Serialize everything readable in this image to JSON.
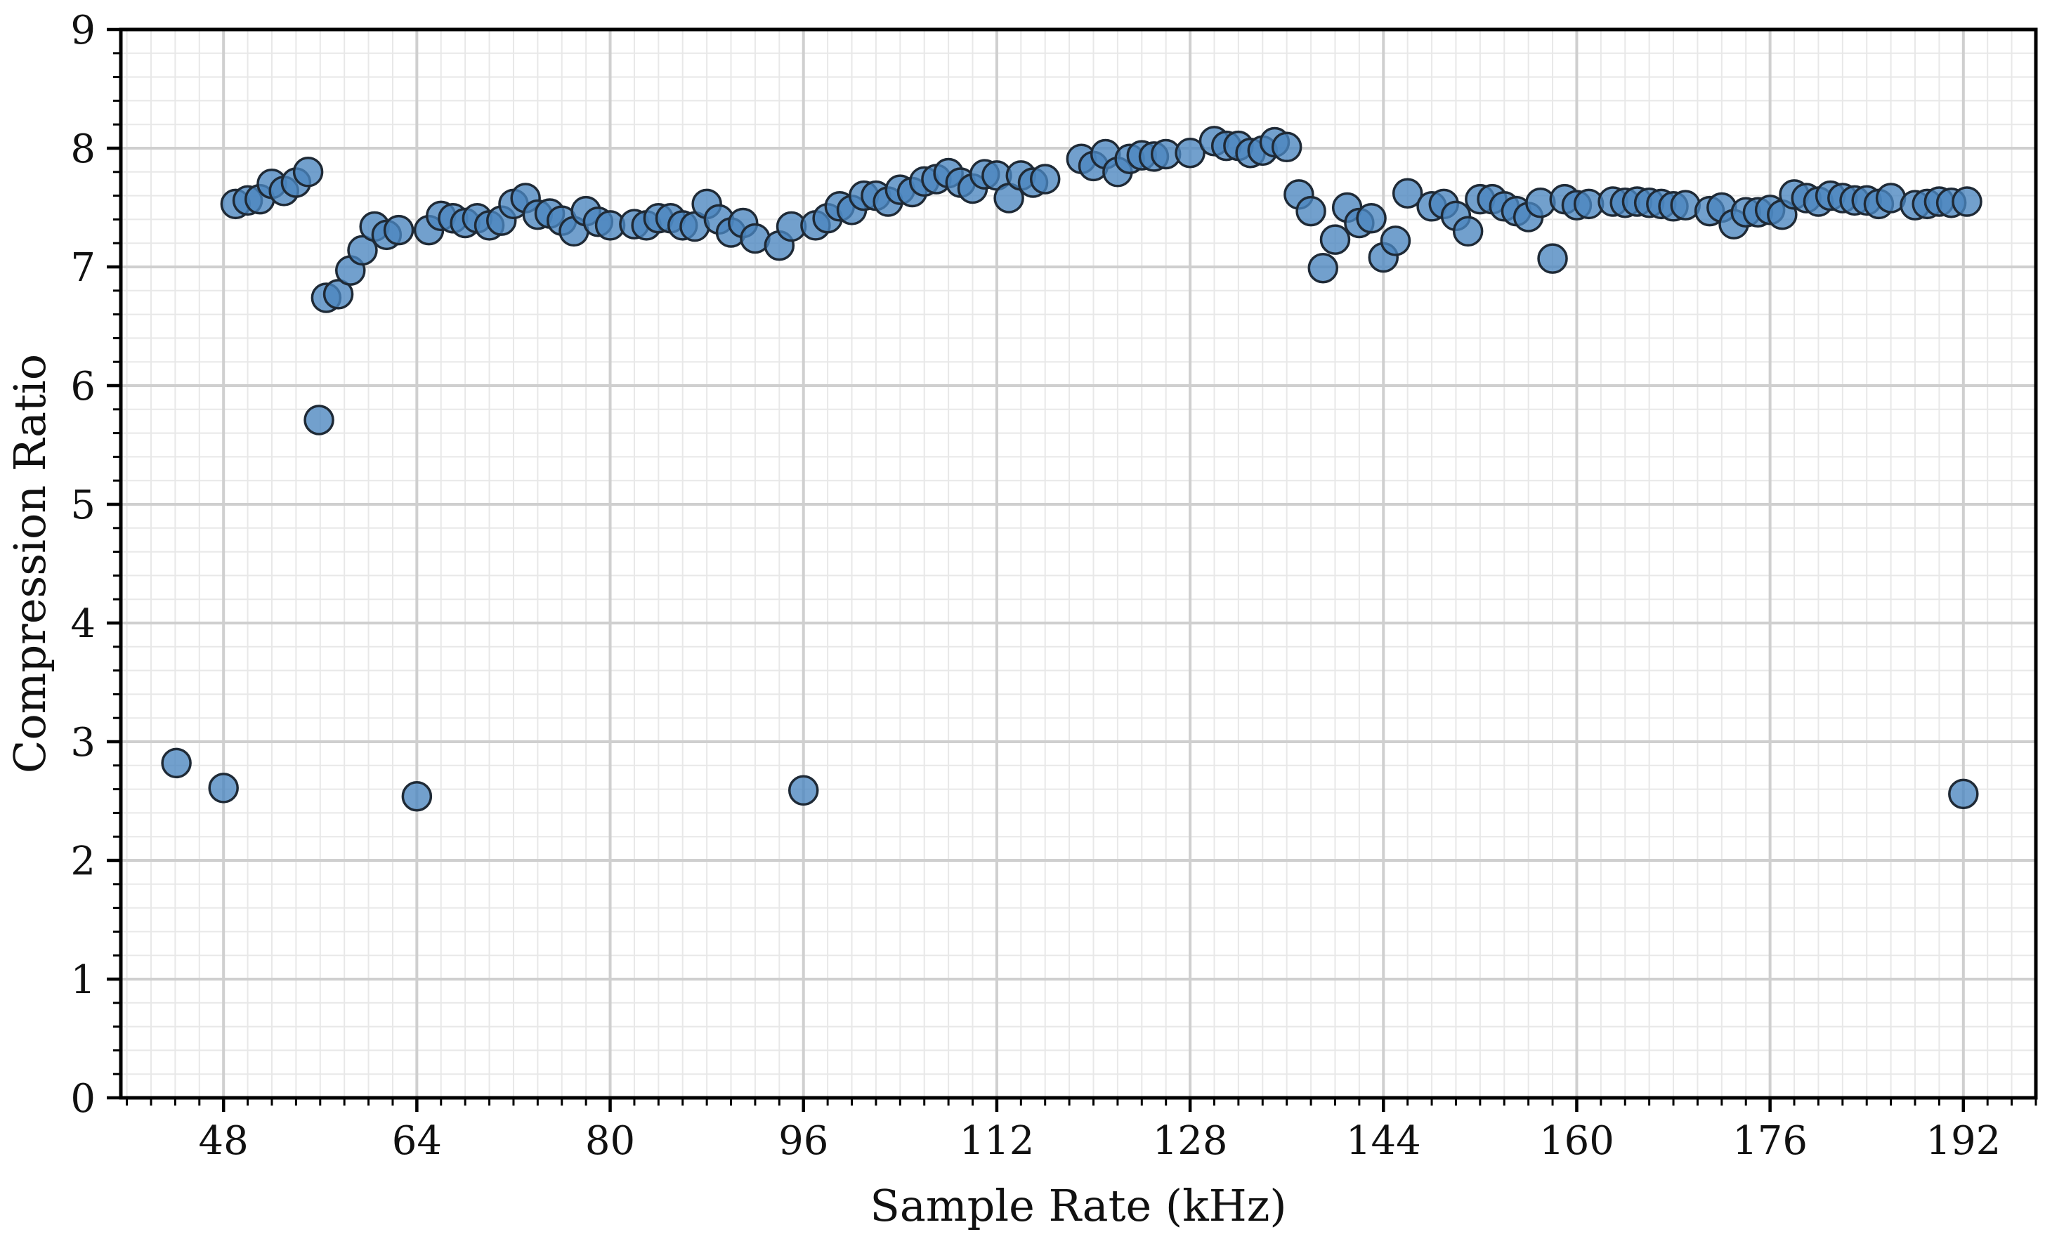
{
  "chart_data": {
    "type": "scatter",
    "title": "",
    "xlabel": "Sample Rate (kHz)",
    "ylabel": "Compression Ratio",
    "xlim": [
      39.5,
      198
    ],
    "ylim": [
      0,
      9
    ],
    "xticks": [
      48,
      64,
      80,
      96,
      112,
      128,
      144,
      160,
      176,
      192
    ],
    "yticks": [
      0,
      1,
      2,
      3,
      4,
      5,
      6,
      7,
      8,
      9
    ],
    "x_minor_step": 2,
    "y_minor_step": 0.2,
    "grid": true,
    "legend": "none",
    "marker_color": "#4a85bf",
    "marker_edge_color": "#1f2a36",
    "series": [
      {
        "points": [
          [
            44.1,
            2.82
          ],
          [
            48,
            2.61
          ],
          [
            64,
            2.54
          ],
          [
            96,
            2.59
          ],
          [
            192,
            2.56
          ],
          [
            49,
            7.53
          ],
          [
            50,
            7.56
          ],
          [
            51,
            7.57
          ],
          [
            52,
            7.7
          ],
          [
            53,
            7.64
          ],
          [
            54,
            7.71
          ],
          [
            55,
            7.8
          ],
          [
            55.9,
            5.71
          ],
          [
            56.5,
            6.74
          ],
          [
            57.5,
            6.77
          ],
          [
            58.5,
            6.97
          ],
          [
            59.5,
            7.14
          ],
          [
            60.5,
            7.34
          ],
          [
            61.5,
            7.27
          ],
          [
            62.5,
            7.31
          ],
          [
            65,
            7.31
          ],
          [
            66,
            7.43
          ],
          [
            67,
            7.41
          ],
          [
            68,
            7.37
          ],
          [
            69,
            7.41
          ],
          [
            70,
            7.35
          ],
          [
            71,
            7.39
          ],
          [
            72,
            7.53
          ],
          [
            73,
            7.58
          ],
          [
            74,
            7.44
          ],
          [
            75,
            7.45
          ],
          [
            76,
            7.39
          ],
          [
            77,
            7.3
          ],
          [
            78,
            7.47
          ],
          [
            79,
            7.38
          ],
          [
            80,
            7.35
          ],
          [
            82,
            7.36
          ],
          [
            83,
            7.35
          ],
          [
            84,
            7.41
          ],
          [
            85,
            7.41
          ],
          [
            86,
            7.35
          ],
          [
            87,
            7.34
          ],
          [
            88,
            7.53
          ],
          [
            89,
            7.4
          ],
          [
            90,
            7.29
          ],
          [
            91,
            7.37
          ],
          [
            92,
            7.24
          ],
          [
            94,
            7.18
          ],
          [
            95,
            7.34
          ],
          [
            97,
            7.35
          ],
          [
            98,
            7.41
          ],
          [
            99,
            7.51
          ],
          [
            100,
            7.48
          ],
          [
            101,
            7.6
          ],
          [
            102,
            7.6
          ],
          [
            103,
            7.55
          ],
          [
            104,
            7.65
          ],
          [
            105,
            7.63
          ],
          [
            106,
            7.72
          ],
          [
            107,
            7.74
          ],
          [
            108,
            7.79
          ],
          [
            109,
            7.71
          ],
          [
            110,
            7.66
          ],
          [
            111,
            7.78
          ],
          [
            112,
            7.77
          ],
          [
            113,
            7.58
          ],
          [
            114,
            7.77
          ],
          [
            115,
            7.71
          ],
          [
            116,
            7.74
          ],
          [
            119,
            7.91
          ],
          [
            120,
            7.85
          ],
          [
            121,
            7.95
          ],
          [
            122,
            7.8
          ],
          [
            123,
            7.91
          ],
          [
            124,
            7.94
          ],
          [
            125,
            7.93
          ],
          [
            126,
            7.95
          ],
          [
            128,
            7.96
          ],
          [
            130,
            8.06
          ],
          [
            131,
            8.02
          ],
          [
            132,
            8.02
          ],
          [
            133,
            7.96
          ],
          [
            134,
            7.98
          ],
          [
            135,
            8.05
          ],
          [
            136,
            8.01
          ],
          [
            137,
            7.61
          ],
          [
            138,
            7.47
          ],
          [
            139,
            6.99
          ],
          [
            140,
            7.23
          ],
          [
            141,
            7.5
          ],
          [
            142,
            7.37
          ],
          [
            143,
            7.41
          ],
          [
            144,
            7.08
          ],
          [
            145,
            7.22
          ],
          [
            146,
            7.62
          ],
          [
            148,
            7.51
          ],
          [
            149,
            7.53
          ],
          [
            150,
            7.43
          ],
          [
            151,
            7.3
          ],
          [
            152,
            7.57
          ],
          [
            153,
            7.57
          ],
          [
            154,
            7.51
          ],
          [
            155,
            7.47
          ],
          [
            156,
            7.42
          ],
          [
            157,
            7.54
          ],
          [
            158,
            7.07
          ],
          [
            159,
            7.57
          ],
          [
            160,
            7.52
          ],
          [
            161,
            7.53
          ],
          [
            163,
            7.55
          ],
          [
            164,
            7.54
          ],
          [
            165,
            7.55
          ],
          [
            166,
            7.54
          ],
          [
            167,
            7.53
          ],
          [
            168,
            7.51
          ],
          [
            169,
            7.52
          ],
          [
            171,
            7.47
          ],
          [
            172,
            7.5
          ],
          [
            173,
            7.36
          ],
          [
            174,
            7.46
          ],
          [
            175,
            7.46
          ],
          [
            176,
            7.48
          ],
          [
            177,
            7.44
          ],
          [
            178,
            7.61
          ],
          [
            179,
            7.58
          ],
          [
            180,
            7.55
          ],
          [
            181,
            7.6
          ],
          [
            182,
            7.58
          ],
          [
            183,
            7.56
          ],
          [
            184,
            7.56
          ],
          [
            185,
            7.53
          ],
          [
            186,
            7.58
          ],
          [
            188,
            7.52
          ],
          [
            189,
            7.53
          ],
          [
            190,
            7.55
          ],
          [
            191,
            7.54
          ],
          [
            192.3,
            7.55
          ]
        ]
      }
    ]
  }
}
